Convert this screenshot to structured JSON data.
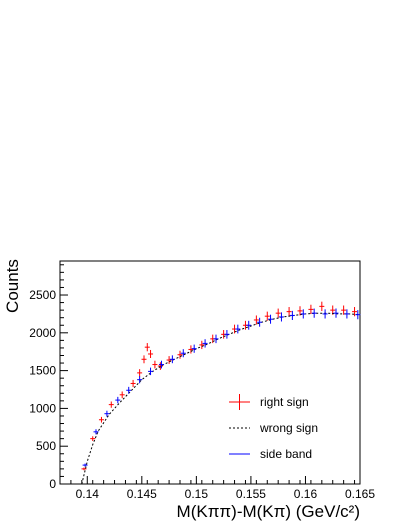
{
  "chart_data": {
    "type": "scatter",
    "title": "",
    "xlabel": "M(Kππ)-M(Kπ) (GeV/c²)",
    "ylabel": "Counts",
    "xlim": [
      0.1375,
      0.165
    ],
    "ylim": [
      0,
      2950
    ],
    "x_ticks": [
      0.14,
      0.145,
      0.15,
      0.155,
      0.16,
      0.165
    ],
    "x_tick_labels": [
      "0.14",
      "0.145",
      "0.15",
      "0.155",
      "0.16",
      "0.165"
    ],
    "y_ticks": [
      0,
      500,
      1000,
      1500,
      2000,
      2500
    ],
    "y_tick_labels": [
      "0",
      "500",
      "1000",
      "1500",
      "2000",
      "2500"
    ],
    "legend_position": "bottom-right",
    "series": [
      {
        "name": "right sign",
        "color": "#ff0000",
        "style": "error-bars",
        "x": [
          0.1397,
          0.1405,
          0.1413,
          0.1422,
          0.1432,
          0.1442,
          0.1448,
          0.1452,
          0.1455,
          0.1458,
          0.1462,
          0.1467,
          0.1475,
          0.1485,
          0.1495,
          0.1505,
          0.1515,
          0.1525,
          0.1535,
          0.1545,
          0.1555,
          0.1565,
          0.1575,
          0.1585,
          0.1595,
          0.1605,
          0.1615,
          0.1625,
          0.1635,
          0.1645
        ],
        "y": [
          200,
          600,
          850,
          1050,
          1180,
          1330,
          1470,
          1650,
          1810,
          1720,
          1580,
          1560,
          1640,
          1710,
          1780,
          1840,
          1920,
          1980,
          2050,
          2100,
          2170,
          2220,
          2260,
          2280,
          2290,
          2310,
          2350,
          2300,
          2300,
          2280
        ]
      },
      {
        "name": "wrong sign",
        "color": "#000000",
        "style": "dashed-line",
        "x": [
          0.1395,
          0.14,
          0.1405,
          0.141,
          0.142,
          0.143,
          0.144,
          0.145,
          0.146,
          0.147,
          0.148,
          0.149,
          0.15,
          0.151,
          0.152,
          0.153,
          0.154,
          0.155,
          0.156,
          0.157,
          0.158,
          0.159,
          0.16,
          0.161,
          0.162,
          0.163,
          0.164,
          0.165
        ],
        "y": [
          0,
          300,
          520,
          700,
          920,
          1080,
          1230,
          1380,
          1490,
          1580,
          1650,
          1720,
          1790,
          1850,
          1920,
          1980,
          2040,
          2090,
          2140,
          2180,
          2210,
          2230,
          2250,
          2260,
          2260,
          2250,
          2250,
          2240
        ]
      },
      {
        "name": "side band",
        "color": "#0000ff",
        "style": "error-bars",
        "x": [
          0.1398,
          0.1408,
          0.1418,
          0.1428,
          0.1438,
          0.1448,
          0.1458,
          0.1468,
          0.1478,
          0.1488,
          0.1498,
          0.1508,
          0.1518,
          0.1528,
          0.1538,
          0.1548,
          0.1558,
          0.1568,
          0.1578,
          0.1588,
          0.1598,
          0.1608,
          0.1618,
          0.1628,
          0.1638,
          0.1648
        ],
        "y": [
          250,
          690,
          930,
          1110,
          1240,
          1380,
          1490,
          1580,
          1650,
          1730,
          1790,
          1860,
          1920,
          1980,
          2050,
          2100,
          2140,
          2180,
          2210,
          2230,
          2250,
          2260,
          2250,
          2260,
          2250,
          2240
        ]
      }
    ]
  }
}
